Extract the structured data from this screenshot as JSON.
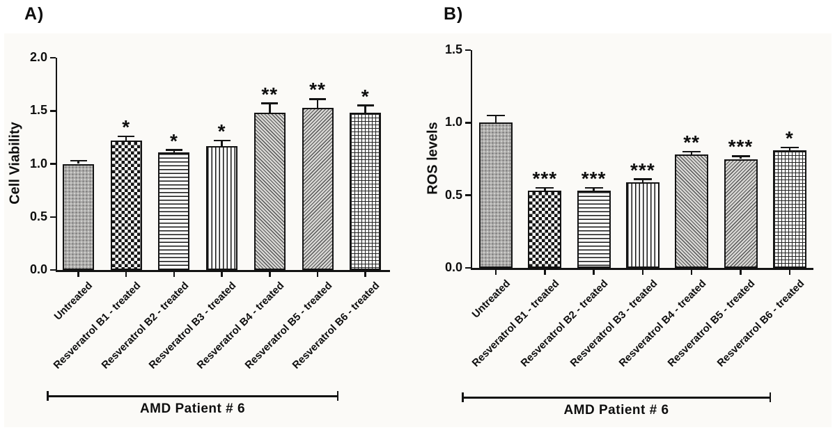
{
  "chart_data": [
    {
      "type": "bar",
      "panel": "A",
      "panel_label": "A)",
      "ylabel": "Cell Viability",
      "xlabel": "",
      "group_label": "AMD Patient # 6",
      "ylim": [
        0.0,
        2.0
      ],
      "yticks": [
        "0.0",
        "0.5",
        "1.0",
        "1.5",
        "2.0"
      ],
      "categories": [
        "Untreated",
        "Resveratrol B1 - treated",
        "Resveratrol B2 - treated",
        "Resveratrol B3 - treated",
        "Resveratrol B4 - treated",
        "Resveratrol B5 - treated",
        "Resveratrol B6 - treated"
      ],
      "values": [
        1.0,
        1.22,
        1.11,
        1.17,
        1.48,
        1.53,
        1.48
      ],
      "errors": [
        0.03,
        0.04,
        0.02,
        0.05,
        0.09,
        0.08,
        0.07
      ],
      "significance": [
        "",
        "*",
        "*",
        "*",
        "**",
        "**",
        "*"
      ],
      "bar_patterns": [
        "gray-dots",
        "checkerboard",
        "horizontal-lines",
        "vertical-lines",
        "diagonal-up",
        "diagonal-down",
        "cross-grid"
      ],
      "grid": "off",
      "legend": "none"
    },
    {
      "type": "bar",
      "panel": "B",
      "panel_label": "B)",
      "ylabel": "ROS levels",
      "xlabel": "",
      "group_label": "AMD Patient # 6",
      "ylim": [
        0.0,
        1.5
      ],
      "yticks": [
        "0.0",
        "0.5",
        "1.0",
        "1.5"
      ],
      "categories": [
        "Untreated",
        "Resveratrol B1 - treated",
        "Resveratrol B2 - treated",
        "Resveratrol B3 - treated",
        "Resveratrol B4 - treated",
        "Resveratrol B5 - treated",
        "Resveratrol B6 - treated"
      ],
      "values": [
        1.0,
        0.53,
        0.53,
        0.59,
        0.78,
        0.75,
        0.81
      ],
      "errors": [
        0.05,
        0.02,
        0.02,
        0.02,
        0.02,
        0.02,
        0.02
      ],
      "significance": [
        "",
        "***",
        "***",
        "***",
        "**",
        "***",
        "*"
      ],
      "bar_patterns": [
        "gray-dots",
        "checkerboard",
        "horizontal-lines",
        "vertical-lines",
        "diagonal-up",
        "diagonal-down",
        "cross-grid"
      ],
      "grid": "off",
      "legend": "none"
    }
  ]
}
